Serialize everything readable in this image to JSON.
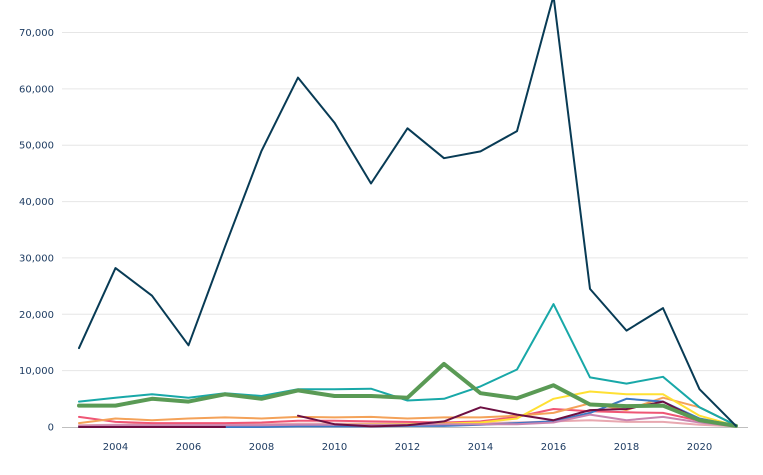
{
  "chart_data": {
    "type": "line",
    "title": "",
    "xlabel": "",
    "ylabel": "",
    "xlim": [
      2003,
      2021
    ],
    "ylim": [
      0,
      75000
    ],
    "grid": true,
    "legend": "none",
    "x": [
      2003,
      2004,
      2005,
      2006,
      2007,
      2008,
      2009,
      2010,
      2011,
      2012,
      2013,
      2014,
      2015,
      2016,
      2017,
      2018,
      2019,
      2020,
      2021
    ],
    "x_ticks": [
      "2004",
      "2006",
      "2008",
      "2010",
      "2012",
      "2014",
      "2016",
      "2018",
      "2020"
    ],
    "y_ticks": [
      "0",
      "10,000",
      "20,000",
      "30,000",
      "40,000",
      "50,000",
      "60,000",
      "70,000"
    ],
    "y_tick_values": [
      0,
      10000,
      20000,
      30000,
      40000,
      50000,
      60000,
      70000
    ],
    "series": [
      {
        "color": "#e8a8b0",
        "width": 2,
        "values": [
          300,
          400,
          500,
          500,
          500,
          500,
          600,
          600,
          600,
          600,
          700,
          700,
          800,
          1000,
          1200,
          900,
          900,
          400,
          100
        ]
      },
      {
        "color": "#ef5675",
        "width": 2,
        "values": [
          1800,
          900,
          700,
          700,
          700,
          800,
          1100,
          1100,
          1000,
          900,
          800,
          1000,
          1800,
          3200,
          2800,
          2600,
          2500,
          1100,
          100
        ]
      },
      {
        "color": "#f4a259",
        "width": 2,
        "values": [
          700,
          1500,
          1200,
          1500,
          1700,
          1500,
          1800,
          1700,
          1800,
          1500,
          1700,
          1700,
          2000,
          2500,
          4200,
          3000,
          5200,
          3500,
          300
        ]
      },
      {
        "color": "#ffe033",
        "width": 2,
        "values": [
          0,
          0,
          0,
          0,
          0,
          100,
          300,
          400,
          500,
          500,
          600,
          800,
          1500,
          5000,
          6300,
          5800,
          5800,
          2000,
          200
        ]
      },
      {
        "color": "#3b78c4",
        "width": 2,
        "values": [
          0,
          0,
          0,
          0,
          0,
          0,
          100,
          100,
          100,
          200,
          200,
          400,
          700,
          1000,
          2500,
          5000,
          4500,
          1500,
          200
        ]
      },
      {
        "color": "#c985b0",
        "width": 2,
        "values": [
          200,
          300,
          300,
          300,
          300,
          300,
          400,
          400,
          400,
          400,
          500,
          500,
          500,
          800,
          2200,
          1200,
          1800,
          800,
          100
        ]
      },
      {
        "color": "#6d0f42",
        "width": 2,
        "values": [
          0,
          0,
          0,
          0,
          0,
          null,
          2000,
          500,
          100,
          300,
          1000,
          3500,
          2200,
          1200,
          3000,
          3200,
          4500,
          1200,
          100
        ]
      },
      {
        "color": "#18a8a8",
        "width": 2,
        "values": [
          4500,
          5200,
          5800,
          5200,
          6000,
          5500,
          6700,
          6700,
          6800,
          4700,
          5000,
          7200,
          10200,
          21800,
          8800,
          7700,
          8900,
          3500,
          300
        ]
      },
      {
        "color": "#5a9a55",
        "width": 4,
        "values": [
          3800,
          3800,
          5000,
          4500,
          5800,
          5000,
          6500,
          5500,
          5500,
          5200,
          11200,
          6000,
          5100,
          7400,
          4000,
          3700,
          3800,
          1200,
          200
        ]
      },
      {
        "color": "#083b55",
        "width": 2,
        "values": [
          14000,
          28200,
          23300,
          14500,
          32000,
          49000,
          62000,
          54000,
          43200,
          53000,
          47700,
          48900,
          52500,
          76500,
          24500,
          17100,
          21100,
          6700,
          200
        ]
      }
    ]
  }
}
